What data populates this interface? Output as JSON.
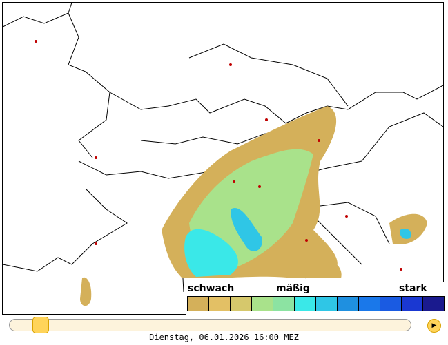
{
  "legend": {
    "low": "schwach",
    "mid": "mäßig",
    "high": "stark",
    "colors": [
      "#d4b05a",
      "#e3c065",
      "#d6c86c",
      "#a9e28b",
      "#8ce3a2",
      "#3ae8e8",
      "#2fc6e6",
      "#1f90e0",
      "#1a78ea",
      "#1a5be2",
      "#1a38d2",
      "#1a1a8e"
    ]
  },
  "slider": {
    "position_fraction": 0.075
  },
  "play_icon": "play-icon",
  "timestamp": "Dienstag, 06.01.2026 16:00 MEZ"
}
